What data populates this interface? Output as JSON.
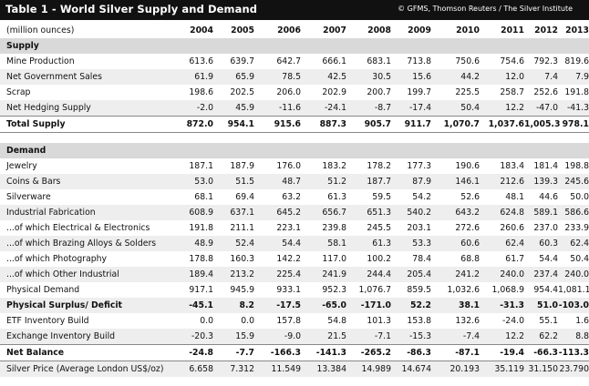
{
  "title": "Table 1 - World Silver Supply and Demand",
  "source": "© GFMS, Thomson Reuters / The Silver Institute",
  "chart_data": {
    "type": "table",
    "unit_label": "(million ounces)",
    "years": [
      "2004",
      "2005",
      "2006",
      "2007",
      "2008",
      "2009",
      "2010",
      "2011",
      "2012",
      "2013"
    ],
    "rows": [
      {
        "label": "Supply",
        "kind": "section",
        "values": []
      },
      {
        "label": "Mine Production",
        "kind": "data",
        "values": [
          "613.6",
          "639.7",
          "642.7",
          "666.1",
          "683.1",
          "713.8",
          "750.6",
          "754.6",
          "792.3",
          "819.6"
        ]
      },
      {
        "label": "Net Government Sales",
        "kind": "data",
        "values": [
          "61.9",
          "65.9",
          "78.5",
          "42.5",
          "30.5",
          "15.6",
          "44.2",
          "12.0",
          "7.4",
          "7.9"
        ]
      },
      {
        "label": "Scrap",
        "kind": "data",
        "values": [
          "198.6",
          "202.5",
          "206.0",
          "202.9",
          "200.7",
          "199.7",
          "225.5",
          "258.7",
          "252.6",
          "191.8"
        ]
      },
      {
        "label": "Net Hedging Supply",
        "kind": "data",
        "values": [
          "-2.0",
          "45.9",
          "-11.6",
          "-24.1",
          "-8.7",
          "-17.4",
          "50.4",
          "12.2",
          "-47.0",
          "-41.3"
        ]
      },
      {
        "label": "Total Supply",
        "kind": "total",
        "values": [
          "872.0",
          "954.1",
          "915.6",
          "887.3",
          "905.7",
          "911.7",
          "1,070.7",
          "1,037.6",
          "1,005.3",
          "978.1"
        ]
      },
      {
        "label": "",
        "kind": "blank",
        "values": []
      },
      {
        "label": "Demand",
        "kind": "section",
        "values": []
      },
      {
        "label": "Jewelry",
        "kind": "data",
        "values": [
          "187.1",
          "187.9",
          "176.0",
          "183.2",
          "178.2",
          "177.3",
          "190.6",
          "183.4",
          "181.4",
          "198.8"
        ]
      },
      {
        "label": "Coins & Bars",
        "kind": "data",
        "values": [
          "53.0",
          "51.5",
          "48.7",
          "51.2",
          "187.7",
          "87.9",
          "146.1",
          "212.6",
          "139.3",
          "245.6"
        ]
      },
      {
        "label": "Silverware",
        "kind": "data",
        "values": [
          "68.1",
          "69.4",
          "63.2",
          "61.3",
          "59.5",
          "54.2",
          "52.6",
          "48.1",
          "44.6",
          "50.0"
        ]
      },
      {
        "label": "Industrial Fabrication",
        "kind": "data",
        "values": [
          "608.9",
          "637.1",
          "645.2",
          "656.7",
          "651.3",
          "540.2",
          "643.2",
          "624.8",
          "589.1",
          "586.6"
        ]
      },
      {
        "label": "...of which Electrical & Electronics",
        "kind": "data",
        "values": [
          "191.8",
          "211.1",
          "223.1",
          "239.8",
          "245.5",
          "203.1",
          "272.6",
          "260.6",
          "237.0",
          "233.9"
        ]
      },
      {
        "label": "...of which Brazing Alloys & Solders",
        "kind": "data",
        "values": [
          "48.9",
          "52.4",
          "54.4",
          "58.1",
          "61.3",
          "53.3",
          "60.6",
          "62.4",
          "60.3",
          "62.4"
        ]
      },
      {
        "label": "...of which Photography",
        "kind": "data",
        "values": [
          "178.8",
          "160.3",
          "142.2",
          "117.0",
          "100.2",
          "78.4",
          "68.8",
          "61.7",
          "54.4",
          "50.4"
        ]
      },
      {
        "label": "...of which Other Industrial",
        "kind": "data",
        "values": [
          "189.4",
          "213.2",
          "225.4",
          "241.9",
          "244.4",
          "205.4",
          "241.2",
          "240.0",
          "237.4",
          "240.0"
        ]
      },
      {
        "label": "Physical Demand",
        "kind": "data",
        "values": [
          "917.1",
          "945.9",
          "933.1",
          "952.3",
          "1,076.7",
          "859.5",
          "1,032.6",
          "1,068.9",
          "954.4",
          "1,081.1"
        ]
      },
      {
        "label": "Physical Surplus/ Deficit",
        "kind": "bold",
        "values": [
          "-45.1",
          "8.2",
          "-17.5",
          "-65.0",
          "-171.0",
          "52.2",
          "38.1",
          "-31.3",
          "51.0",
          "-103.0"
        ]
      },
      {
        "label": "ETF Inventory Build",
        "kind": "data",
        "values": [
          "0.0",
          "0.0",
          "157.8",
          "54.8",
          "101.3",
          "153.8",
          "132.6",
          "-24.0",
          "55.1",
          "1.6"
        ]
      },
      {
        "label": "Exchange Inventory Build",
        "kind": "data",
        "values": [
          "-20.3",
          "15.9",
          "-9.0",
          "21.5",
          "-7.1",
          "-15.3",
          "-7.4",
          "12.2",
          "62.2",
          "8.8"
        ]
      },
      {
        "label": "Net Balance",
        "kind": "total",
        "values": [
          "-24.8",
          "-7.7",
          "-166.3",
          "-141.3",
          "-265.2",
          "-86.3",
          "-87.1",
          "-19.4",
          "-66.3",
          "-113.3"
        ]
      },
      {
        "label": "Silver Price (Average  London US$/oz)",
        "kind": "data",
        "values": [
          "6.658",
          "7.312",
          "11.549",
          "13.384",
          "14.989",
          "14.674",
          "20.193",
          "35.119",
          "31.150",
          "23.790"
        ]
      }
    ]
  }
}
